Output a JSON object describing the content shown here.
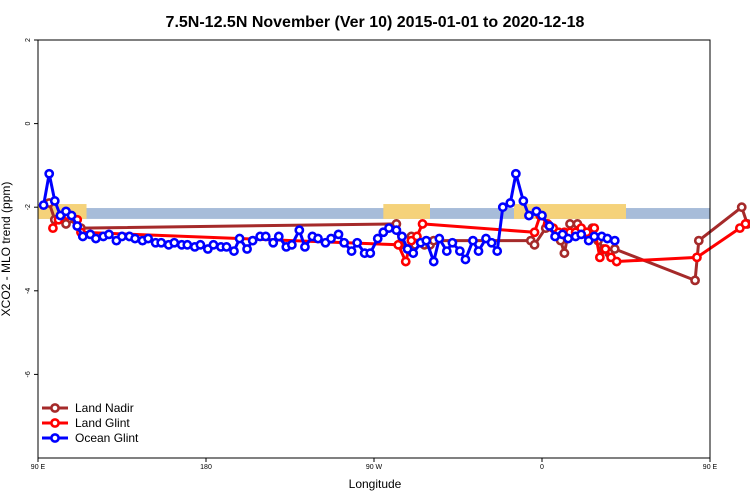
{
  "chart_data": {
    "type": "line",
    "title": "7.5N-12.5N November (Ver 10)   2015-01-01 to 2020-12-18",
    "xlabel": "Longitude",
    "ylabel": "XCO2 - MLO trend (ppm)",
    "xlim": [
      90,
      450
    ],
    "ylim": [
      -8,
      2
    ],
    "x_ticks": [
      {
        "value": 90,
        "label": "90 E"
      },
      {
        "value": 180,
        "label": "180"
      },
      {
        "value": 270,
        "label": "90 W"
      },
      {
        "value": 360,
        "label": "0"
      },
      {
        "value": 450,
        "label": "90 E"
      },
      {
        "value": 540,
        "label": "180"
      }
    ],
    "y_ticks": [
      {
        "value": 2,
        "label": "2"
      },
      {
        "value": 0,
        "label": "0"
      },
      {
        "value": -2,
        "label": "-2"
      },
      {
        "value": -4,
        "label": "-4"
      },
      {
        "value": -6,
        "label": "-6"
      }
    ],
    "background_band": {
      "y_low": -2.28,
      "y_high": -2.02,
      "color": "#a7bcd9"
    },
    "land_color": "#f5d27a",
    "land_segments": [
      [
        90,
        116
      ],
      [
        275,
        300
      ],
      [
        345,
        405
      ],
      [
        510,
        515
      ],
      [
        542,
        555
      ]
    ],
    "legend_position": "bottom-left",
    "series": [
      {
        "name": "Land Nadir",
        "color": "#a52a2a",
        "points": [
          [
            96,
            -1.9
          ],
          [
            99,
            -2.3
          ],
          [
            102,
            -2.2
          ],
          [
            105,
            -2.4
          ],
          [
            110,
            -2.3
          ],
          [
            113,
            -2.5
          ],
          [
            282,
            -2.4
          ],
          [
            284,
            -2.9
          ],
          [
            288,
            -3.0
          ],
          [
            290,
            -2.7
          ],
          [
            292,
            -2.9
          ],
          [
            297,
            -2.9
          ],
          [
            300,
            -2.9
          ],
          [
            302,
            -2.8
          ],
          [
            354,
            -2.8
          ],
          [
            356,
            -2.9
          ],
          [
            362,
            -2.5
          ],
          [
            368,
            -2.6
          ],
          [
            370,
            -2.8
          ],
          [
            372,
            -3.1
          ],
          [
            375,
            -2.4
          ],
          [
            379,
            -2.4
          ],
          [
            384,
            -2.6
          ],
          [
            387,
            -2.5
          ],
          [
            390,
            -2.8
          ],
          [
            393,
            -3.0
          ],
          [
            396,
            -3.1
          ],
          [
            399,
            -3.0
          ],
          [
            442,
            -3.75
          ],
          [
            444,
            -2.8
          ],
          [
            467,
            -2.0
          ],
          [
            470,
            -2.4
          ],
          [
            478,
            -2.2
          ],
          [
            481,
            -2.5
          ]
        ]
      },
      {
        "name": "Land Glint",
        "color": "#ff0000",
        "points": [
          [
            98,
            -2.5
          ],
          [
            101,
            -2.3
          ],
          [
            106,
            -2.2
          ],
          [
            111,
            -2.3
          ],
          [
            113,
            -2.6
          ],
          [
            283,
            -2.9
          ],
          [
            287,
            -3.3
          ],
          [
            290,
            -2.8
          ],
          [
            293,
            -2.7
          ],
          [
            296,
            -2.4
          ],
          [
            356,
            -2.6
          ],
          [
            359,
            -2.2
          ],
          [
            363,
            -2.4
          ],
          [
            366,
            -2.5
          ],
          [
            369,
            -2.6
          ],
          [
            372,
            -2.6
          ],
          [
            375,
            -2.6
          ],
          [
            378,
            -2.6
          ],
          [
            381,
            -2.5
          ],
          [
            384,
            -2.6
          ],
          [
            388,
            -2.5
          ],
          [
            391,
            -3.2
          ],
          [
            394,
            -3.0
          ],
          [
            397,
            -3.2
          ],
          [
            400,
            -3.3
          ],
          [
            443,
            -3.2
          ],
          [
            466,
            -2.5
          ],
          [
            469,
            -2.4
          ],
          [
            478,
            -2.3
          ],
          [
            480,
            -2.6
          ]
        ]
      },
      {
        "name": "Ocean Glint",
        "color": "#0000ff",
        "points": [
          [
            93,
            -1.95
          ],
          [
            96,
            -1.2
          ],
          [
            99,
            -1.85
          ],
          [
            102,
            -2.2
          ],
          [
            105,
            -2.1
          ],
          [
            108,
            -2.2
          ],
          [
            111,
            -2.45
          ],
          [
            114,
            -2.7
          ],
          [
            118,
            -2.65
          ],
          [
            121,
            -2.75
          ],
          [
            125,
            -2.7
          ],
          [
            128,
            -2.65
          ],
          [
            132,
            -2.8
          ],
          [
            135,
            -2.7
          ],
          [
            139,
            -2.7
          ],
          [
            142,
            -2.75
          ],
          [
            146,
            -2.8
          ],
          [
            149,
            -2.75
          ],
          [
            153,
            -2.85
          ],
          [
            156,
            -2.85
          ],
          [
            160,
            -2.9
          ],
          [
            163,
            -2.85
          ],
          [
            167,
            -2.9
          ],
          [
            170,
            -2.9
          ],
          [
            174,
            -2.95
          ],
          [
            177,
            -2.9
          ],
          [
            181,
            -3.0
          ],
          [
            184,
            -2.9
          ],
          [
            188,
            -2.95
          ],
          [
            191,
            -2.95
          ],
          [
            195,
            -3.05
          ],
          [
            198,
            -2.75
          ],
          [
            202,
            -3.0
          ],
          [
            205,
            -2.8
          ],
          [
            209,
            -2.7
          ],
          [
            212,
            -2.7
          ],
          [
            216,
            -2.85
          ],
          [
            219,
            -2.7
          ],
          [
            223,
            -2.95
          ],
          [
            226,
            -2.9
          ],
          [
            230,
            -2.55
          ],
          [
            233,
            -2.95
          ],
          [
            237,
            -2.7
          ],
          [
            240,
            -2.75
          ],
          [
            244,
            -2.85
          ],
          [
            247,
            -2.75
          ],
          [
            251,
            -2.65
          ],
          [
            254,
            -2.85
          ],
          [
            258,
            -3.05
          ],
          [
            261,
            -2.85
          ],
          [
            265,
            -3.1
          ],
          [
            268,
            -3.1
          ],
          [
            272,
            -2.75
          ],
          [
            275,
            -2.6
          ],
          [
            278,
            -2.5
          ],
          [
            282,
            -2.55
          ],
          [
            285,
            -2.7
          ],
          [
            288,
            -3.0
          ],
          [
            291,
            -3.1
          ],
          [
            295,
            -2.85
          ],
          [
            298,
            -2.8
          ],
          [
            302,
            -3.3
          ],
          [
            305,
            -2.75
          ],
          [
            309,
            -3.05
          ],
          [
            312,
            -2.85
          ],
          [
            316,
            -3.05
          ],
          [
            319,
            -3.25
          ],
          [
            323,
            -2.8
          ],
          [
            326,
            -3.05
          ],
          [
            330,
            -2.75
          ],
          [
            333,
            -2.85
          ],
          [
            336,
            -3.05
          ],
          [
            339,
            -2.0
          ],
          [
            343,
            -1.9
          ],
          [
            346,
            -1.2
          ],
          [
            350,
            -1.85
          ],
          [
            353,
            -2.2
          ],
          [
            357,
            -2.1
          ],
          [
            360,
            -2.2
          ],
          [
            364,
            -2.45
          ],
          [
            367,
            -2.7
          ],
          [
            371,
            -2.65
          ],
          [
            374,
            -2.75
          ],
          [
            378,
            -2.7
          ],
          [
            381,
            -2.65
          ],
          [
            385,
            -2.8
          ],
          [
            388,
            -2.7
          ],
          [
            392,
            -2.7
          ],
          [
            395,
            -2.75
          ],
          [
            399,
            -2.8
          ]
        ]
      }
    ]
  }
}
